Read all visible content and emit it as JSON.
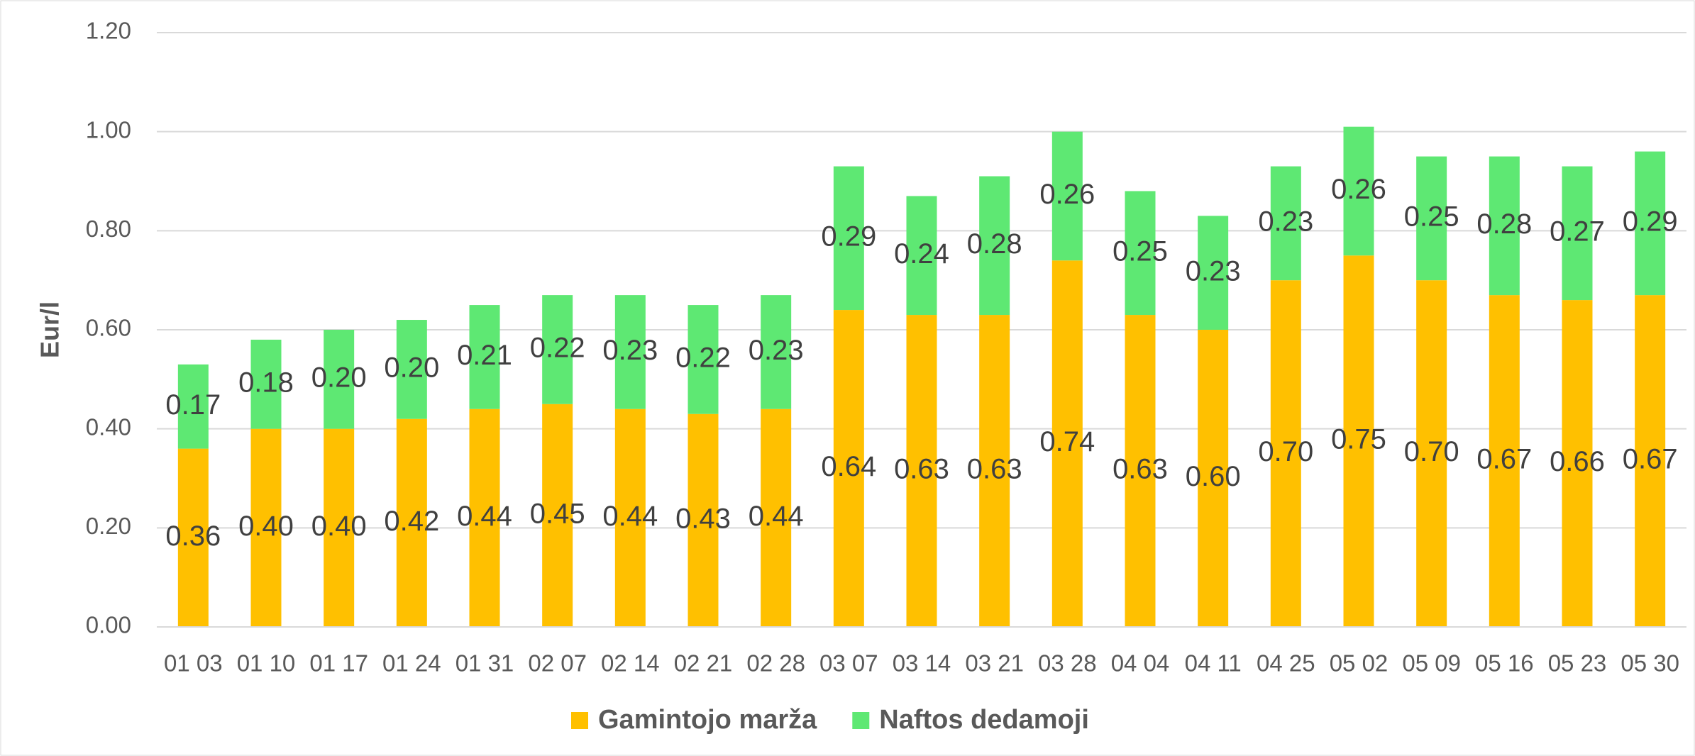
{
  "chart_data": {
    "type": "stacked_bar",
    "y_label": "Eur/l",
    "categories": [
      "01 03",
      "01 10",
      "01 17",
      "01 24",
      "01 31",
      "02 07",
      "02 14",
      "02 21",
      "02 28",
      "03 07",
      "03 14",
      "03 21",
      "03 28",
      "04 04",
      "04 11",
      "04 25",
      "05 02",
      "05 09",
      "05 16",
      "05 23",
      "05 30"
    ],
    "series": [
      {
        "name": "Gamintojo marža",
        "color": "#ffc000",
        "values": [
          0.36,
          0.4,
          0.4,
          0.42,
          0.44,
          0.45,
          0.44,
          0.43,
          0.44,
          0.64,
          0.63,
          0.63,
          0.74,
          0.63,
          0.6,
          0.7,
          0.75,
          0.7,
          0.67,
          0.66,
          0.67
        ],
        "value_labels": [
          "0.36",
          "0.40",
          "0.40",
          "0.42",
          "0.44",
          "0.45",
          "0.44",
          "0.43",
          "0.44",
          "0.64",
          "0.63",
          "0.63",
          "0.74",
          "0.63",
          "0.60",
          "0.70",
          "0.75",
          "0.70",
          "0.67",
          "0.66",
          "0.67"
        ]
      },
      {
        "name": "Naftos dedamoji",
        "color": "#5ee873",
        "values": [
          0.17,
          0.18,
          0.2,
          0.2,
          0.21,
          0.22,
          0.23,
          0.22,
          0.23,
          0.29,
          0.24,
          0.28,
          0.26,
          0.25,
          0.23,
          0.23,
          0.26,
          0.25,
          0.28,
          0.27,
          0.29
        ],
        "value_labels": [
          "0.17",
          "0.18",
          "0.20",
          "0.20",
          "0.21",
          "0.22",
          "0.23",
          "0.22",
          "0.23",
          "0.29",
          "0.24",
          "0.28",
          "0.26",
          "0.25",
          "0.23",
          "0.23",
          "0.26",
          "0.25",
          "0.28",
          "0.27",
          "0.29"
        ]
      }
    ],
    "ylim": [
      0,
      1.2
    ],
    "yticks": [
      {
        "value": 0,
        "label": "0.00"
      },
      {
        "value": 0.2,
        "label": "0.20"
      },
      {
        "value": 0.4,
        "label": "0.40"
      },
      {
        "value": 0.6,
        "label": "0.60"
      },
      {
        "value": 0.8,
        "label": "0.80"
      },
      {
        "value": 1,
        "label": "1.00"
      },
      {
        "value": 1.2,
        "label": "1.20"
      }
    ],
    "grid": true,
    "legend": "bottom"
  }
}
